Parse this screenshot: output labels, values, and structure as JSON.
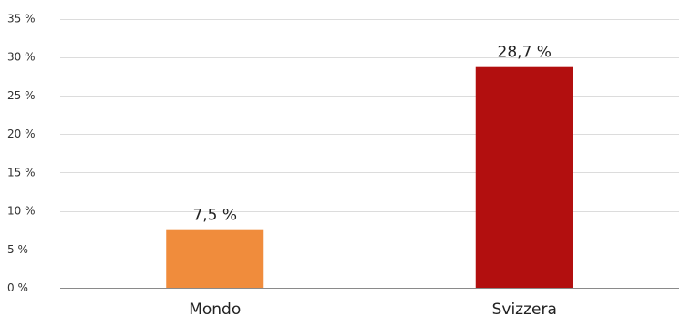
{
  "chart_data": {
    "type": "bar",
    "categories": [
      "Mondo",
      "Svizzera"
    ],
    "values": [
      7.5,
      28.7
    ],
    "value_labels": [
      "7,5 %",
      "28,7 %"
    ],
    "bar_colors": [
      "#f08c3c",
      "#b20f0f"
    ],
    "ylim": [
      0,
      35
    ],
    "yticks": [
      0,
      5,
      10,
      15,
      20,
      25,
      30,
      35
    ],
    "ytick_labels": [
      "0 %",
      "5 %",
      "10 %",
      "15 %",
      "20 %",
      "25 %",
      "30 %",
      "35 %"
    ],
    "grid": true,
    "title": "",
    "xlabel": "",
    "ylabel": ""
  }
}
